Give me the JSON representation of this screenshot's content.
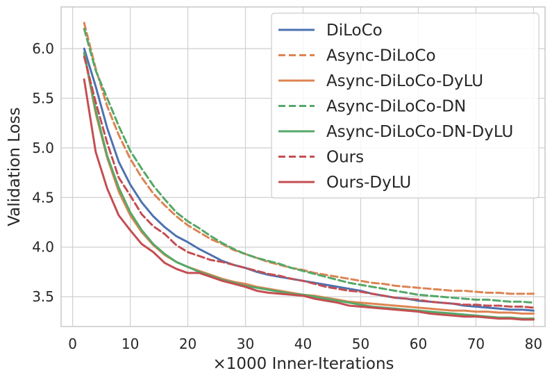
{
  "chart_data": {
    "type": "line",
    "title": "",
    "xlabel": "×1000 Inner-Iterations",
    "ylabel": "Validation Loss",
    "xlim": [
      -2,
      82
    ],
    "ylim": [
      3.2,
      6.42
    ],
    "xticks": [
      0,
      10,
      20,
      30,
      40,
      50,
      60,
      70,
      80
    ],
    "xtick_labels": [
      "0",
      "10",
      "20",
      "30",
      "40",
      "50",
      "60",
      "70",
      "80"
    ],
    "yticks": [
      3.5,
      4.0,
      4.5,
      5.0,
      5.5,
      6.0
    ],
    "ytick_labels": [
      "3.5",
      "4.0",
      "4.5",
      "5.0",
      "5.5",
      "6.0"
    ],
    "grid": true,
    "legend_position": "top-right",
    "x": [
      2,
      4,
      6,
      8,
      10,
      12,
      14,
      16,
      18,
      20,
      22,
      24,
      26,
      28,
      30,
      32,
      34,
      36,
      38,
      40,
      42,
      44,
      46,
      48,
      50,
      52,
      54,
      56,
      58,
      60,
      62,
      64,
      66,
      68,
      70,
      72,
      74,
      76,
      78,
      80
    ],
    "series": [
      {
        "name": "DiLoCo",
        "color": "#4c72b0",
        "dash": "solid",
        "values": [
          6.0,
          5.62,
          5.2,
          4.86,
          4.63,
          4.45,
          4.31,
          4.2,
          4.11,
          4.05,
          3.98,
          3.92,
          3.86,
          3.82,
          3.79,
          3.75,
          3.72,
          3.7,
          3.68,
          3.66,
          3.64,
          3.62,
          3.6,
          3.58,
          3.56,
          3.53,
          3.51,
          3.49,
          3.48,
          3.46,
          3.45,
          3.44,
          3.43,
          3.41,
          3.4,
          3.39,
          3.38,
          3.37,
          3.37,
          3.36
        ]
      },
      {
        "name": "Async-DiLoCo",
        "color": "#dd8452",
        "dash": "dashed",
        "values": [
          6.26,
          5.8,
          5.42,
          5.13,
          4.89,
          4.7,
          4.54,
          4.42,
          4.31,
          4.22,
          4.15,
          4.08,
          4.03,
          3.97,
          3.93,
          3.89,
          3.85,
          3.82,
          3.79,
          3.77,
          3.74,
          3.72,
          3.7,
          3.68,
          3.66,
          3.64,
          3.63,
          3.61,
          3.6,
          3.59,
          3.58,
          3.57,
          3.56,
          3.56,
          3.55,
          3.54,
          3.54,
          3.53,
          3.53,
          3.53
        ]
      },
      {
        "name": "Async-DiLoCo-DyLU",
        "color": "#dd8452",
        "dash": "solid",
        "values": [
          5.95,
          5.35,
          4.9,
          4.56,
          4.32,
          4.15,
          4.02,
          3.92,
          3.85,
          3.8,
          3.76,
          3.72,
          3.68,
          3.65,
          3.63,
          3.6,
          3.58,
          3.56,
          3.54,
          3.52,
          3.51,
          3.49,
          3.47,
          3.45,
          3.44,
          3.43,
          3.42,
          3.41,
          3.4,
          3.39,
          3.38,
          3.37,
          3.36,
          3.36,
          3.35,
          3.35,
          3.34,
          3.34,
          3.33,
          3.33
        ]
      },
      {
        "name": "Async-DiLoCo-DN",
        "color": "#55a868",
        "dash": "dashed",
        "values": [
          6.2,
          5.78,
          5.5,
          5.22,
          4.97,
          4.79,
          4.62,
          4.48,
          4.35,
          4.26,
          4.19,
          4.11,
          4.04,
          3.98,
          3.93,
          3.89,
          3.86,
          3.83,
          3.79,
          3.76,
          3.73,
          3.7,
          3.67,
          3.64,
          3.62,
          3.6,
          3.58,
          3.56,
          3.54,
          3.52,
          3.51,
          3.5,
          3.49,
          3.48,
          3.47,
          3.47,
          3.46,
          3.45,
          3.45,
          3.44
        ]
      },
      {
        "name": "Async-DiLoCo-DN-DyLU",
        "color": "#55a868",
        "dash": "solid",
        "values": [
          5.96,
          5.38,
          4.92,
          4.6,
          4.35,
          4.17,
          4.03,
          3.93,
          3.85,
          3.8,
          3.75,
          3.71,
          3.67,
          3.64,
          3.61,
          3.59,
          3.57,
          3.55,
          3.53,
          3.52,
          3.5,
          3.48,
          3.46,
          3.44,
          3.42,
          3.4,
          3.39,
          3.38,
          3.37,
          3.36,
          3.35,
          3.34,
          3.33,
          3.32,
          3.31,
          3.3,
          3.29,
          3.29,
          3.28,
          3.28
        ]
      },
      {
        "name": "Ours",
        "color": "#c44e52",
        "dash": "dashed",
        "values": [
          5.92,
          5.46,
          5.05,
          4.7,
          4.52,
          4.33,
          4.21,
          4.13,
          4.02,
          3.95,
          3.91,
          3.87,
          3.85,
          3.82,
          3.79,
          3.76,
          3.73,
          3.71,
          3.68,
          3.66,
          3.63,
          3.6,
          3.58,
          3.56,
          3.55,
          3.53,
          3.51,
          3.49,
          3.48,
          3.47,
          3.45,
          3.44,
          3.43,
          3.42,
          3.42,
          3.41,
          3.41,
          3.4,
          3.4,
          3.39
        ]
      },
      {
        "name": "Ours-DyLU",
        "color": "#c44e52",
        "dash": "solid",
        "values": [
          5.69,
          4.96,
          4.59,
          4.32,
          4.17,
          4.03,
          3.95,
          3.84,
          3.78,
          3.74,
          3.74,
          3.7,
          3.66,
          3.63,
          3.6,
          3.56,
          3.54,
          3.53,
          3.52,
          3.51,
          3.48,
          3.46,
          3.44,
          3.41,
          3.4,
          3.39,
          3.38,
          3.37,
          3.36,
          3.35,
          3.33,
          3.32,
          3.31,
          3.3,
          3.3,
          3.29,
          3.28,
          3.28,
          3.27,
          3.27
        ]
      }
    ]
  }
}
